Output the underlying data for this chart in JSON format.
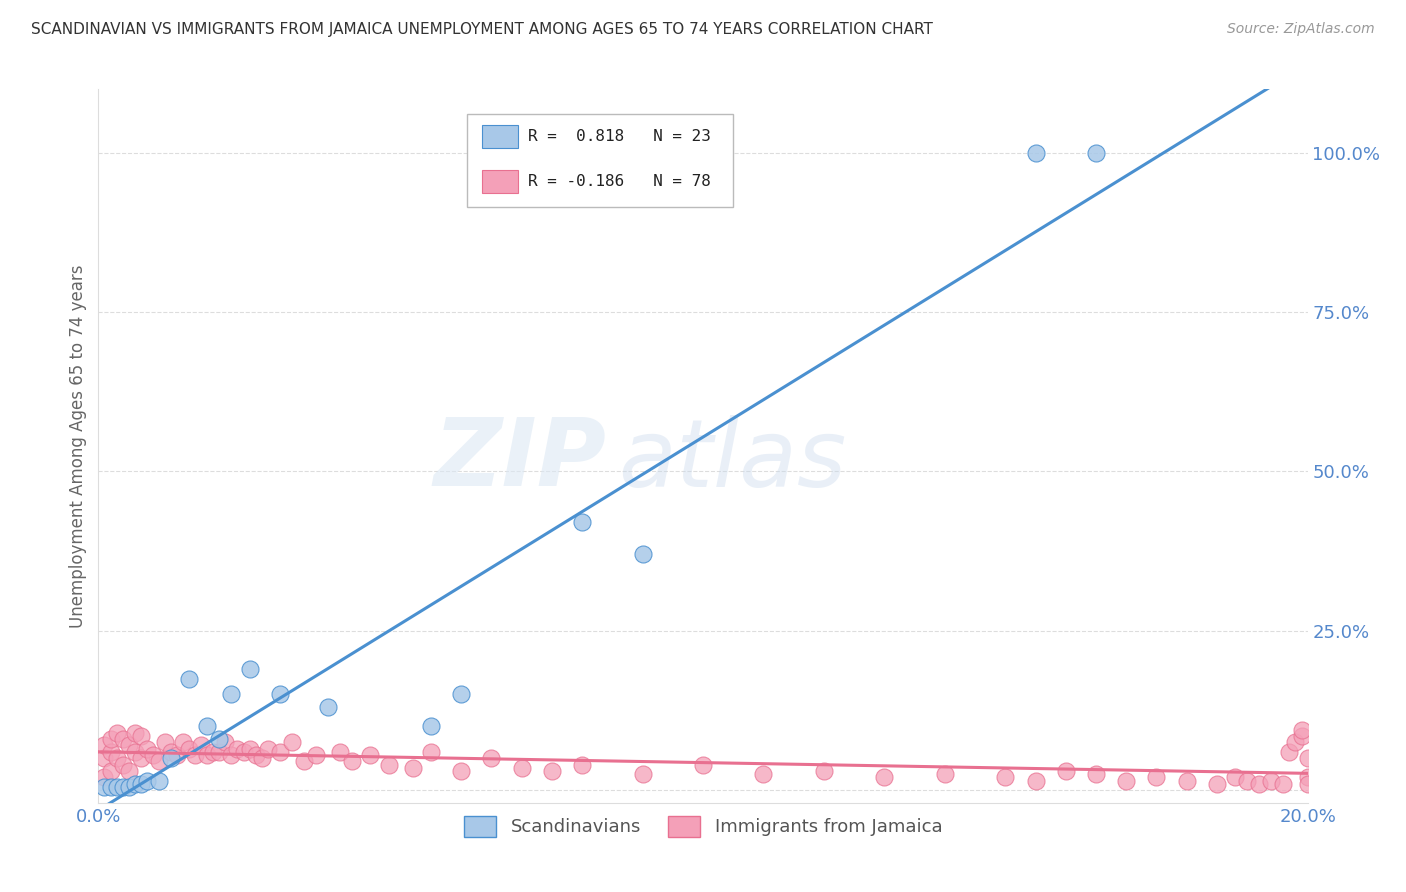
{
  "title": "SCANDINAVIAN VS IMMIGRANTS FROM JAMAICA UNEMPLOYMENT AMONG AGES 65 TO 74 YEARS CORRELATION CHART",
  "source": "Source: ZipAtlas.com",
  "ylabel": "Unemployment Among Ages 65 to 74 years",
  "xlim": [
    0.0,
    0.2
  ],
  "ylim": [
    -0.02,
    1.1
  ],
  "xticks": [
    0.0,
    0.2
  ],
  "xticklabels": [
    "0.0%",
    "20.0%"
  ],
  "yticks": [
    0.0,
    0.25,
    0.5,
    0.75,
    1.0
  ],
  "yticklabels": [
    "",
    "25.0%",
    "50.0%",
    "75.0%",
    "100.0%"
  ],
  "legend_label1": "Scandinavians",
  "legend_label2": "Immigrants from Jamaica",
  "r1": 0.818,
  "n1": 23,
  "r2": -0.186,
  "n2": 78,
  "color1": "#a8c8e8",
  "color2": "#f4a0b8",
  "line_color1": "#4a90d0",
  "line_color2": "#e87090",
  "watermark_zip": "ZIP",
  "watermark_atlas": "atlas",
  "scand_x": [
    0.001,
    0.002,
    0.003,
    0.004,
    0.005,
    0.006,
    0.007,
    0.008,
    0.01,
    0.012,
    0.015,
    0.018,
    0.02,
    0.022,
    0.025,
    0.03,
    0.038,
    0.055,
    0.06,
    0.08,
    0.09,
    0.155,
    0.165
  ],
  "scand_y": [
    0.005,
    0.005,
    0.005,
    0.005,
    0.005,
    0.01,
    0.01,
    0.015,
    0.015,
    0.05,
    0.175,
    0.1,
    0.08,
    0.15,
    0.19,
    0.15,
    0.13,
    0.1,
    0.15,
    0.42,
    0.37,
    1.0,
    1.0
  ],
  "jam_x": [
    0.001,
    0.001,
    0.001,
    0.002,
    0.002,
    0.002,
    0.003,
    0.003,
    0.004,
    0.004,
    0.005,
    0.005,
    0.006,
    0.006,
    0.007,
    0.007,
    0.008,
    0.009,
    0.01,
    0.011,
    0.012,
    0.013,
    0.014,
    0.015,
    0.016,
    0.017,
    0.018,
    0.019,
    0.02,
    0.021,
    0.022,
    0.023,
    0.024,
    0.025,
    0.026,
    0.027,
    0.028,
    0.03,
    0.032,
    0.034,
    0.036,
    0.04,
    0.042,
    0.045,
    0.048,
    0.052,
    0.055,
    0.06,
    0.065,
    0.07,
    0.075,
    0.08,
    0.09,
    0.1,
    0.11,
    0.12,
    0.13,
    0.14,
    0.15,
    0.155,
    0.16,
    0.165,
    0.17,
    0.175,
    0.18,
    0.185,
    0.188,
    0.19,
    0.192,
    0.194,
    0.196,
    0.197,
    0.198,
    0.199,
    0.199,
    0.2,
    0.2,
    0.2
  ],
  "jam_y": [
    0.02,
    0.05,
    0.07,
    0.03,
    0.06,
    0.08,
    0.05,
    0.09,
    0.04,
    0.08,
    0.03,
    0.07,
    0.06,
    0.09,
    0.05,
    0.085,
    0.065,
    0.055,
    0.045,
    0.075,
    0.06,
    0.055,
    0.075,
    0.065,
    0.055,
    0.07,
    0.055,
    0.06,
    0.06,
    0.075,
    0.055,
    0.065,
    0.06,
    0.065,
    0.055,
    0.05,
    0.065,
    0.06,
    0.075,
    0.045,
    0.055,
    0.06,
    0.045,
    0.055,
    0.04,
    0.035,
    0.06,
    0.03,
    0.05,
    0.035,
    0.03,
    0.04,
    0.025,
    0.04,
    0.025,
    0.03,
    0.02,
    0.025,
    0.02,
    0.015,
    0.03,
    0.025,
    0.015,
    0.02,
    0.015,
    0.01,
    0.02,
    0.015,
    0.01,
    0.015,
    0.01,
    0.06,
    0.075,
    0.085,
    0.095,
    0.02,
    0.05,
    0.01
  ],
  "grid_color": "#dddddd",
  "tick_color": "#5588cc",
  "title_color": "#333333",
  "source_color": "#999999",
  "ylabel_color": "#666666"
}
